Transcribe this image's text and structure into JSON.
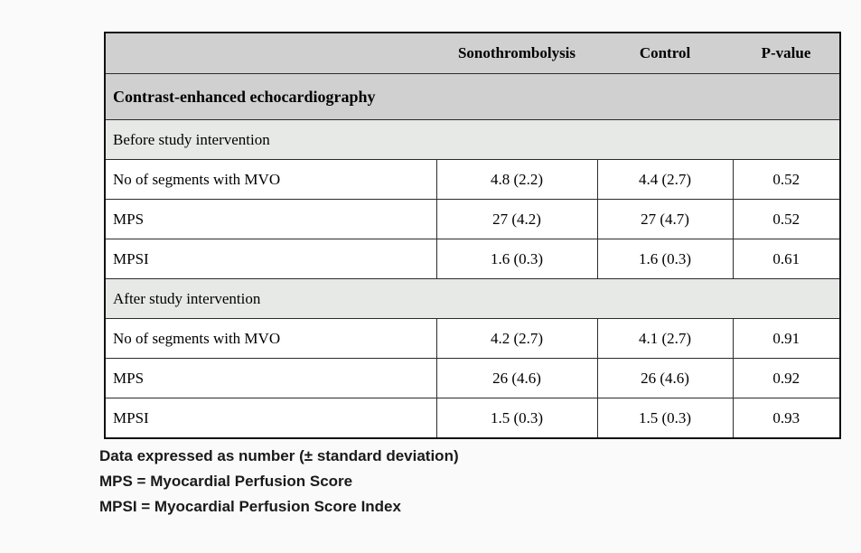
{
  "table": {
    "header": {
      "empty": "",
      "sonothrombolysis": "Sonothrombolysis",
      "control": "Control",
      "p_value": "P-value"
    },
    "group_title": "Contrast-enhanced echocardiography",
    "sections": [
      {
        "label": "Before study intervention",
        "rows": [
          {
            "label": "No of segments with MVO",
            "sono": "4.8 (2.2)",
            "control": "4.4 (2.7)",
            "p": "0.52"
          },
          {
            "label": "MPS",
            "sono": "27 (4.2)",
            "control": "27 (4.7)",
            "p": "0.52"
          },
          {
            "label": "MPSI",
            "sono": "1.6 (0.3)",
            "control": "1.6 (0.3)",
            "p": "0.61"
          }
        ]
      },
      {
        "label": "After study intervention",
        "rows": [
          {
            "label": "No of segments with MVO",
            "sono": "4.2 (2.7)",
            "control": "4.1 (2.7)",
            "p": "0.91"
          },
          {
            "label": "MPS",
            "sono": "26 (4.6)",
            "control": "26 (4.6)",
            "p": "0.92"
          },
          {
            "label": "MPSI",
            "sono": "1.5 (0.3)",
            "control": "1.5 (0.3)",
            "p": "0.93"
          }
        ]
      }
    ]
  },
  "footnotes": [
    "Data expressed as number (± standard deviation)",
    "MPS = Myocardial Perfusion Score",
    "MPSI = Myocardial Perfusion Score Index"
  ],
  "colors": {
    "page_background": "#fafafa",
    "header_row_background": "#d0d0d0",
    "section_row_background": "#e7e9e7",
    "data_row_background": "#ffffff",
    "border": "#2b2b2b",
    "text": "#000000"
  }
}
